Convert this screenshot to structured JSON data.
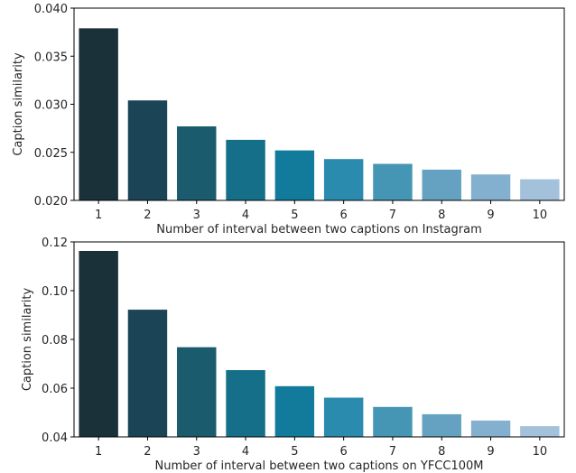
{
  "chart_data": [
    {
      "type": "bar",
      "categories": [
        "1",
        "2",
        "3",
        "4",
        "5",
        "6",
        "7",
        "8",
        "9",
        "10"
      ],
      "values": [
        0.0379,
        0.0304,
        0.0277,
        0.0263,
        0.0252,
        0.0243,
        0.0238,
        0.0232,
        0.0227,
        0.0222
      ],
      "xlabel": "Number of interval between two captions on Instagram",
      "ylabel": "Caption similarity",
      "ylim": [
        0.02,
        0.04
      ],
      "yticks": [
        "0.020",
        "0.025",
        "0.030",
        "0.035",
        "0.040"
      ],
      "colors": [
        "#1b3139",
        "#1b4557",
        "#1a5b6d",
        "#156f88",
        "#127b9b",
        "#2b8baf",
        "#4596b4",
        "#65a2c1",
        "#84b0cf",
        "#a3c1db"
      ],
      "grid": false
    },
    {
      "type": "bar",
      "categories": [
        "1",
        "2",
        "3",
        "4",
        "5",
        "6",
        "7",
        "8",
        "9",
        "10"
      ],
      "values": [
        0.1163,
        0.0922,
        0.0768,
        0.0674,
        0.0608,
        0.0561,
        0.0523,
        0.0493,
        0.0467,
        0.0444
      ],
      "xlabel": "Number of interval between two captions on YFCC100M",
      "ylabel": "Caption similarity",
      "ylim": [
        0.04,
        0.12
      ],
      "yticks": [
        "0.04",
        "0.06",
        "0.08",
        "0.10",
        "0.12"
      ],
      "colors": [
        "#1b3139",
        "#1b4557",
        "#1a5b6d",
        "#156f88",
        "#127b9b",
        "#2b8baf",
        "#4596b4",
        "#65a2c1",
        "#84b0cf",
        "#a3c1db"
      ],
      "grid": false
    }
  ]
}
